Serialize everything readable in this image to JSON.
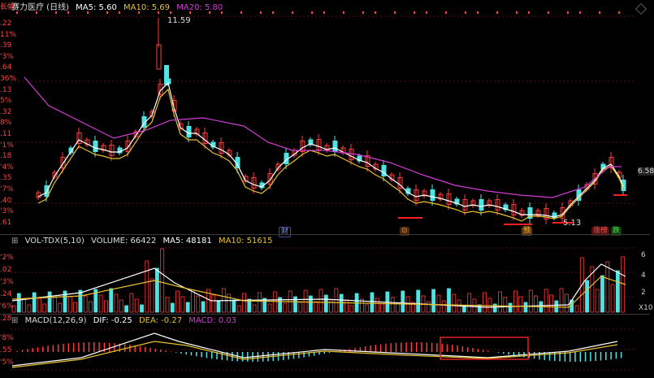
{
  "price_panel": {
    "title": "赛力医疗 (日线)",
    "ma5": "MA5: 5.60",
    "ma10": "MA10: 5.69",
    "ma20": "MA20: 5.80",
    "high_label": "11.59",
    "low_label": "5.13",
    "last_price_tag": "6.58",
    "left_axis": [
      ".22",
      "11%",
      ".39",
      "'3%",
      ".64",
      "36%",
      ".13",
      "5%",
      ".32",
      "8%",
      ".11",
      "'1%",
      ".18",
      "'4%",
      ".35",
      "'7%",
      ".40",
      "'3%",
      ".61"
    ],
    "event_badges": [
      "财",
      "⊙",
      "预",
      "涨榜",
      "跌"
    ],
    "top_left_label": "长幅"
  },
  "volume_panel": {
    "title": "VOL-TDX(5,10)",
    "volume": "VOLUME: 66422",
    "ma5": "MA5: 48181",
    "ma10": "MA10: 51615",
    "right_axis": [
      "6",
      "4",
      "2",
      "X10"
    ],
    "left_axis": [
      "'2%",
      ".02",
      "'3%",
      ".24",
      "'6%",
      ".28"
    ]
  },
  "macd_panel": {
    "title": "MACD(12,26,9)",
    "dif": "DIF: -0.25",
    "dea": "DEA: -0.27",
    "macd": "MACD: 0.03",
    "left_axis": [
      "'8%",
      ".55",
      "'5%"
    ]
  },
  "colors": {
    "up": "#ff3b3b",
    "down": "#4fe3e3",
    "ma5": "#ffffff",
    "ma10": "#e8c12e",
    "ma20": "#d23cd2",
    "grid": "#5a1010"
  }
}
